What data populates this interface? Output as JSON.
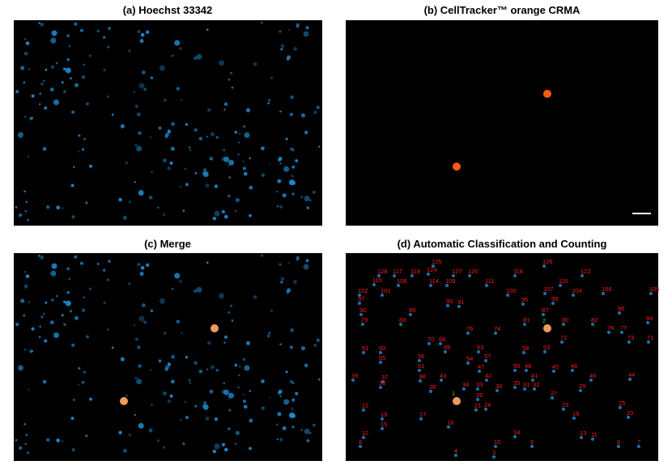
{
  "panels": [
    {
      "title": "(a) Hoechst 33342"
    },
    {
      "title": "(b) CellTracker™ orange CRMA"
    },
    {
      "title": "(c) Merge"
    },
    {
      "title": "(d) Automatic Classification and Counting"
    }
  ],
  "cell_labels_red": [
    "128",
    "117",
    "119",
    "124",
    "125",
    "127",
    "120",
    "118",
    "126",
    "122",
    "115",
    "108",
    "114",
    "109",
    "111",
    "116",
    "102",
    "101",
    "100",
    "107",
    "104",
    "106",
    "105",
    "97",
    "95",
    "99",
    "93",
    "91",
    "96",
    "89",
    "87",
    "86",
    "79",
    "83",
    "81",
    "80",
    "82",
    "84",
    "76",
    "74",
    "78",
    "77",
    "73",
    "71",
    "70",
    "68",
    "72",
    "61",
    "60",
    "65",
    "63",
    "58",
    "53",
    "55",
    "57",
    "54",
    "56",
    "51",
    "47",
    "50",
    "48",
    "45",
    "46",
    "43",
    "42",
    "41",
    "40",
    "44",
    "39",
    "37",
    "38",
    "36",
    "34",
    "33",
    "32",
    "31",
    "35",
    "30",
    "28",
    "29",
    "27",
    "26",
    "24",
    "25",
    "22",
    "23",
    "21",
    "19",
    "17",
    "20",
    "18",
    "16",
    "15",
    "14",
    "13",
    "11",
    "12",
    "10",
    "9",
    "8",
    "6",
    "7",
    "4",
    "3"
  ],
  "cell_labels_green": [
    "1",
    "2"
  ]
}
